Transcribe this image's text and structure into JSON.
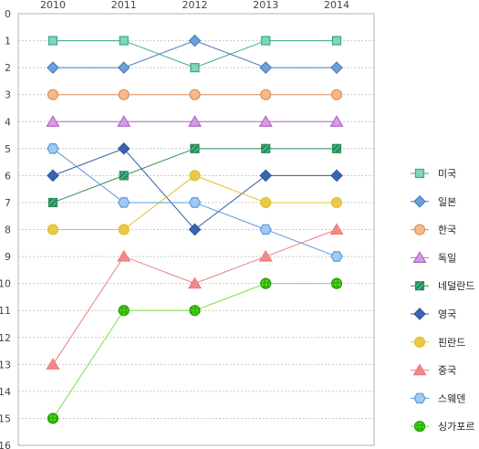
{
  "chart_data": {
    "type": "line",
    "title": "",
    "xlabel": "",
    "ylabel": "",
    "x": [
      "2010",
      "2011",
      "2012",
      "2013",
      "2014"
    ],
    "ylim": [
      0,
      16
    ],
    "y_inverted": true,
    "y_ticks": [
      0,
      1,
      2,
      3,
      4,
      5,
      6,
      7,
      8,
      9,
      10,
      11,
      12,
      13,
      14,
      15,
      16
    ],
    "grid": {
      "horizontal": true,
      "style": "dotted"
    },
    "legend": "right",
    "series": [
      {
        "name": "미국",
        "values": [
          1,
          1,
          2,
          1,
          1
        ],
        "color": "#3aa88a",
        "fill": "#7fd6bf",
        "marker": "square"
      },
      {
        "name": "일본",
        "values": [
          2,
          2,
          1,
          2,
          2
        ],
        "color": "#4a7cbf",
        "fill": "#6f9fd8",
        "marker": "diamond"
      },
      {
        "name": "한국",
        "values": [
          3,
          3,
          3,
          3,
          3
        ],
        "color": "#e0905a",
        "fill": "#f5b98c",
        "marker": "circle"
      },
      {
        "name": "독일",
        "values": [
          4,
          4,
          4,
          4,
          4
        ],
        "color": "#b267c2",
        "fill": "#d89ae4",
        "marker": "triangle"
      },
      {
        "name": "네덜란드",
        "values": [
          7,
          6,
          5,
          5,
          5
        ],
        "color": "#2e8b57",
        "fill": "#1f8f5f",
        "marker": "square-hatched"
      },
      {
        "name": "영국",
        "values": [
          6,
          5,
          8,
          6,
          6
        ],
        "color": "#2f5aa0",
        "fill": "#3a66b0",
        "marker": "diamond"
      },
      {
        "name": "핀란드",
        "values": [
          8,
          8,
          6,
          7,
          7
        ],
        "color": "#e3bf2c",
        "fill": "#e9c94a",
        "marker": "circle"
      },
      {
        "name": "중국",
        "values": [
          13,
          9,
          10,
          9,
          8
        ],
        "color": "#ee7b7b",
        "fill": "#f08a8a",
        "marker": "triangle"
      },
      {
        "name": "스웨덴",
        "values": [
          5,
          7,
          7,
          8,
          9
        ],
        "color": "#5b9bd8",
        "fill": "#9fcaf5",
        "marker": "hexagon"
      },
      {
        "name": "싱가포르",
        "values": [
          15,
          11,
          11,
          10,
          10
        ],
        "color": "#77e34a",
        "fill": "#46dd18",
        "marker": "circle-hatched"
      }
    ]
  }
}
